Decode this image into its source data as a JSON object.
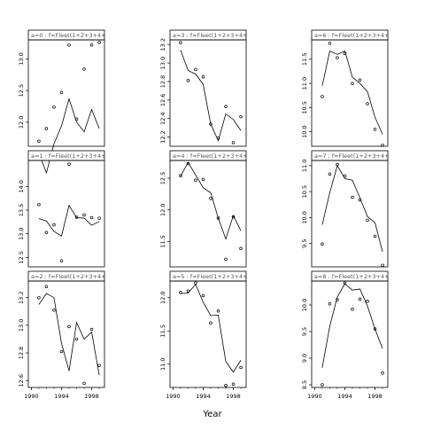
{
  "chart_data": {
    "type": "scatter",
    "xlabel": "Year",
    "x": [
      1991,
      1992,
      1993,
      1994,
      1995,
      1996,
      1997,
      1998,
      1999
    ],
    "x_ticks": [
      1990,
      1994,
      1998
    ],
    "panels": [
      {
        "label": "a=0  :  f=Fleet(1+2+3+4+5)",
        "y_ticks": [
          12.0,
          12.5,
          13.0
        ],
        "ylim": [
          11.62,
          13.3
        ],
        "points": [
          11.7,
          11.9,
          12.24,
          12.47,
          13.22,
          12.05,
          12.84,
          13.22,
          13.26
        ],
        "fit": [
          11.51,
          11.2,
          11.66,
          11.94,
          12.37,
          12.0,
          11.85,
          12.2,
          11.9
        ]
      },
      {
        "label": "a=1  :  f=Fleet(1+2+3+4+5)",
        "y_ticks": [
          12.5,
          13.0,
          13.5,
          14.0
        ],
        "ylim": [
          12.3,
          14.55
        ],
        "points": [
          13.62,
          13.03,
          13.19,
          12.43,
          14.47,
          13.35,
          13.4,
          13.34,
          13.33
        ],
        "fit": [
          13.32,
          13.27,
          13.05,
          12.95,
          13.6,
          13.34,
          13.33,
          13.18,
          13.26
        ]
      },
      {
        "label": "a=2  :  f=Fleet(1+2+3+4+5)",
        "y_ticks": [
          12.6,
          12.8,
          13.0,
          13.2
        ],
        "ylim": [
          12.55,
          13.32
        ],
        "points": [
          13.2,
          13.28,
          13.11,
          12.81,
          12.99,
          12.9,
          12.58,
          12.97,
          12.71
        ],
        "fit": [
          13.15,
          13.23,
          13.2,
          12.87,
          12.67,
          13.02,
          12.9,
          12.95,
          12.64
        ]
      },
      {
        "label": "a=3  :  f=Fleet(1+2+3+4+5)",
        "y_ticks": [
          12.2,
          12.4,
          12.6,
          12.8,
          13.0,
          13.2
        ],
        "ylim": [
          12.1,
          13.25
        ],
        "points": [
          13.22,
          12.81,
          12.93,
          12.85,
          12.34,
          12.19,
          12.53,
          12.14,
          12.42
        ],
        "fit": [
          13.14,
          12.92,
          12.88,
          12.77,
          12.34,
          12.16,
          12.45,
          12.39,
          12.27
        ]
      },
      {
        "label": "a=4  :  f=Fleet(1+2+3+4+5)",
        "y_ticks": [
          11.5,
          12.0,
          12.5
        ],
        "ylim": [
          11.1,
          12.78
        ],
        "points": [
          12.54,
          12.73,
          12.47,
          12.48,
          12.18,
          11.87,
          11.22,
          11.89,
          11.39
        ],
        "fit": [
          12.53,
          12.75,
          12.55,
          12.35,
          12.27,
          11.87,
          11.54,
          11.91,
          11.67
        ]
      },
      {
        "label": "a=5  :  f=Fleet(1+2+3+4+5)",
        "y_ticks": [
          11.0,
          11.5,
          12.0
        ],
        "ylim": [
          10.65,
          12.25
        ],
        "points": [
          12.08,
          12.1,
          12.22,
          12.03,
          11.62,
          11.8,
          10.68,
          10.7,
          10.95
        ],
        "fit": [
          12.06,
          12.07,
          12.2,
          11.93,
          11.73,
          11.74,
          11.04,
          10.88,
          11.06
        ]
      },
      {
        "label": "a=6  :  f=Fleet(1+2+3+4+5)",
        "y_ticks": [
          10.0,
          10.5,
          11.0,
          11.5
        ],
        "ylim": [
          9.7,
          11.9
        ],
        "points": [
          10.73,
          11.83,
          11.53,
          11.62,
          11.0,
          11.07,
          10.58,
          10.05,
          9.72
        ],
        "fit": [
          10.95,
          11.67,
          11.6,
          11.67,
          11.13,
          11.0,
          10.83,
          10.3,
          9.95
        ]
      },
      {
        "label": "a=7  :  f=Fleet(1+2+3+4+5)",
        "y_ticks": [
          9.5,
          10.0,
          10.5,
          11.0
        ],
        "ylim": [
          9.05,
          11.1
        ],
        "points": [
          9.49,
          10.84,
          11.02,
          10.8,
          10.39,
          10.34,
          9.95,
          9.64,
          9.08
        ],
        "fit": [
          9.86,
          10.48,
          11.0,
          10.75,
          10.72,
          10.38,
          10.02,
          9.9,
          9.34
        ]
      },
      {
        "label": "a=8  :  f=Fleet(1+2+3+4+5)",
        "y_ticks": [
          8.5,
          9.0,
          9.5,
          10.0
        ],
        "ylim": [
          8.45,
          10.45
        ],
        "points": [
          8.5,
          10.02,
          10.1,
          10.41,
          9.92,
          10.11,
          10.07,
          9.55,
          8.72
        ],
        "fit": [
          8.82,
          9.6,
          10.15,
          10.4,
          10.28,
          10.3,
          9.98,
          9.55,
          9.18
        ]
      }
    ]
  }
}
